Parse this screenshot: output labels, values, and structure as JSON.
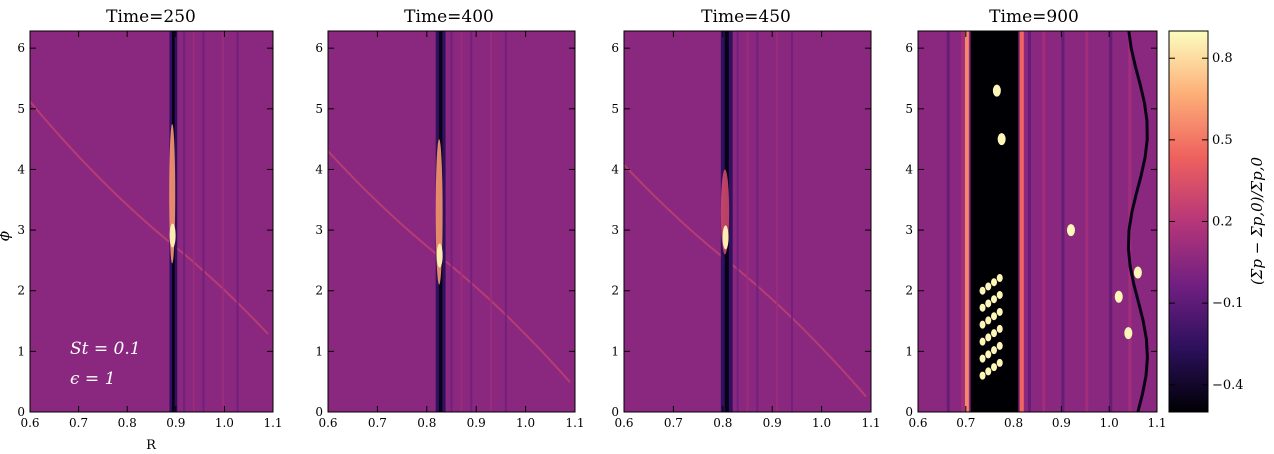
{
  "chart_data": {
    "type": "heatmap",
    "panels": [
      {
        "title": "Time=250",
        "planet_r": 0.895,
        "ring_half_width": 0.008
      },
      {
        "title": "Time=400",
        "planet_r": 0.828,
        "ring_half_width": 0.01
      },
      {
        "title": "Time=450",
        "planet_r": 0.808,
        "ring_half_width": 0.012
      },
      {
        "title": "Time=900",
        "gap": [
          0.71,
          0.81
        ]
      }
    ],
    "xlim": [
      0.6,
      1.1
    ],
    "ylim": [
      0,
      6.283
    ],
    "xticks": [
      "0.6",
      "0.7",
      "0.8",
      "0.9",
      "1.0",
      "1.1"
    ],
    "yticks": [
      "0",
      "1",
      "2",
      "3",
      "4",
      "5",
      "6"
    ],
    "xlabel": "R",
    "ylabel": "ϕ",
    "annotation_lines": [
      "St = 0.1",
      "ϵ = 1"
    ],
    "colorbar": {
      "label": "(Σp − Σp,0)/Σp,0",
      "ticks": [
        "0.8",
        "0.5",
        "0.2",
        "−0.1",
        "−0.4"
      ],
      "tick_values": [
        0.8,
        0.5,
        0.2,
        -0.1,
        -0.4
      ],
      "range": [
        -0.5,
        0.9
      ],
      "colormap": "magma",
      "colors": [
        "#000004",
        "#2c105c",
        "#711f81",
        "#b63679",
        "#ee605e",
        "#fdae78",
        "#fcfdbf"
      ]
    }
  }
}
